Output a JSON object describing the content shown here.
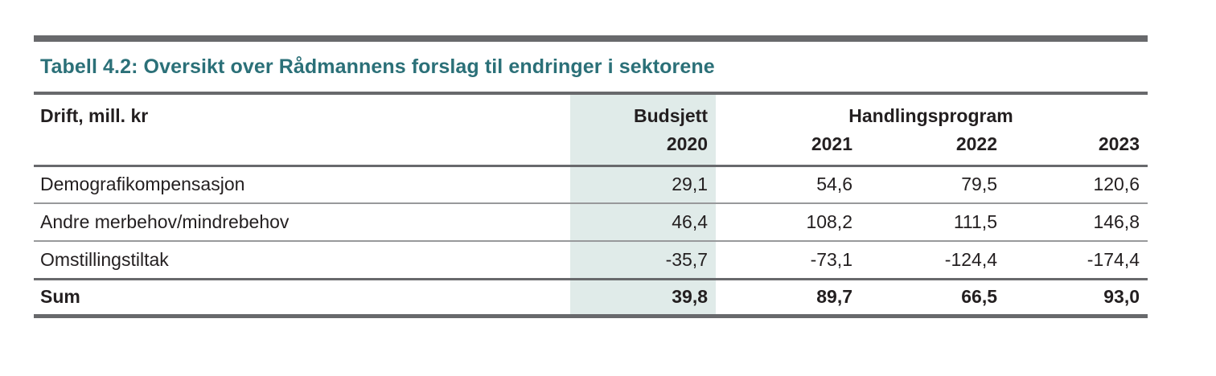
{
  "page": {
    "title": "Tabell 4.2: Oversikt over Rådmannens forslag til endringer i sektorene"
  },
  "table": {
    "col1_header": "Drift, mill. kr",
    "budget_group_label": "Budsjett",
    "budget_year": "2020",
    "program_group_label": "Handlingsprogram",
    "program_years": [
      "2021",
      "2022",
      "2023"
    ],
    "rows": [
      {
        "label": "Demografikompensasjon",
        "budsjett_2020": "29,1",
        "y2021": "54,6",
        "y2022": "79,5",
        "y2023": "120,6"
      },
      {
        "label": "Andre merbehov/mindrebehov",
        "budsjett_2020": "46,4",
        "y2021": "108,2",
        "y2022": "111,5",
        "y2023": "146,8"
      },
      {
        "label": "Omstillingstiltak",
        "budsjett_2020": "-35,7",
        "y2021": "-73,1",
        "y2022": "-124,4",
        "y2023": "-174,4"
      }
    ],
    "sum_row": {
      "label": "Sum",
      "budsjett_2020": "39,8",
      "y2021": "89,7",
      "y2022": "66,5",
      "y2023": "93,0"
    }
  },
  "colors": {
    "title_color": "#2b7078",
    "highlight_column_bg": "#e0ebe9",
    "rule_dark": "#68696c",
    "rule_light": "#98999b",
    "text_color": "#231f20",
    "page_bg": "#ffffff"
  }
}
